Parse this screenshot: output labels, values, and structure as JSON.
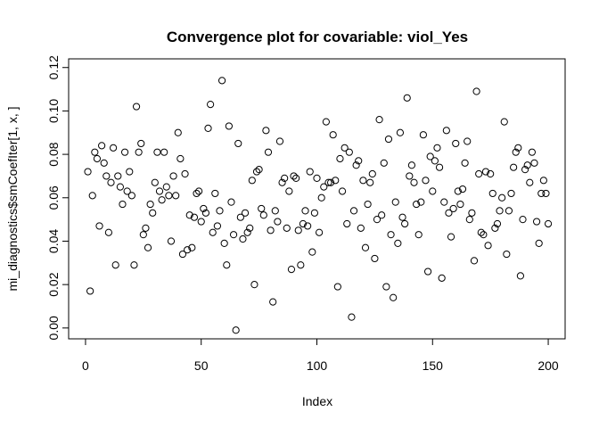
{
  "chart_data": {
    "type": "scatter",
    "title": "Convergence plot for covariable:   viol_Yes",
    "xlabel": "Index",
    "ylabel": "mi_diagnostics$smCoefIter[1, x, ]",
    "x": [
      1,
      2,
      3,
      4,
      5,
      6,
      7,
      8,
      9,
      10,
      11,
      12,
      13,
      14,
      15,
      16,
      17,
      18,
      19,
      20,
      21,
      22,
      23,
      24,
      25,
      26,
      27,
      28,
      29,
      30,
      31,
      32,
      33,
      34,
      35,
      36,
      37,
      38,
      39,
      40,
      41,
      42,
      43,
      44,
      45,
      46,
      47,
      48,
      49,
      50,
      51,
      52,
      53,
      54,
      55,
      56,
      57,
      58,
      59,
      60,
      61,
      62,
      63,
      64,
      65,
      66,
      67,
      68,
      69,
      70,
      71,
      72,
      73,
      74,
      75,
      76,
      77,
      78,
      79,
      80,
      81,
      82,
      83,
      84,
      85,
      86,
      87,
      88,
      89,
      90,
      91,
      92,
      93,
      94,
      95,
      96,
      97,
      98,
      99,
      100,
      101,
      102,
      103,
      104,
      105,
      106,
      107,
      108,
      109,
      110,
      111,
      112,
      113,
      114,
      115,
      116,
      117,
      118,
      119,
      120,
      121,
      122,
      123,
      124,
      125,
      126,
      127,
      128,
      129,
      130,
      131,
      132,
      133,
      134,
      135,
      136,
      137,
      138,
      139,
      140,
      141,
      142,
      143,
      144,
      145,
      146,
      147,
      148,
      149,
      150,
      151,
      152,
      153,
      154,
      155,
      156,
      157,
      158,
      159,
      160,
      161,
      162,
      163,
      164,
      165,
      166,
      167,
      168,
      169,
      170,
      171,
      172,
      173,
      174,
      175,
      176,
      177,
      178,
      179,
      180,
      181,
      182,
      183,
      184,
      185,
      186,
      187,
      188,
      189,
      190,
      191,
      192,
      193,
      194,
      195,
      196,
      197,
      198,
      199,
      200
    ],
    "values": [
      0.072,
      0.017,
      0.061,
      0.081,
      0.078,
      0.047,
      0.084,
      0.076,
      0.07,
      0.044,
      0.067,
      0.083,
      0.029,
      0.07,
      0.065,
      0.057,
      0.081,
      0.063,
      0.072,
      0.061,
      0.029,
      0.102,
      0.081,
      0.085,
      0.043,
      0.046,
      0.037,
      0.057,
      0.053,
      0.067,
      0.081,
      0.063,
      0.059,
      0.081,
      0.065,
      0.061,
      0.04,
      0.07,
      0.061,
      0.09,
      0.078,
      0.034,
      0.071,
      0.036,
      0.052,
      0.037,
      0.051,
      0.062,
      0.063,
      0.049,
      0.055,
      0.053,
      0.092,
      0.103,
      0.044,
      0.062,
      0.047,
      0.054,
      0.114,
      0.039,
      0.029,
      0.093,
      0.058,
      0.043,
      -0.001,
      0.085,
      0.051,
      0.041,
      0.053,
      0.044,
      0.046,
      0.068,
      0.02,
      0.072,
      0.073,
      0.055,
      0.052,
      0.091,
      0.081,
      0.045,
      0.012,
      0.054,
      0.049,
      0.086,
      0.067,
      0.069,
      0.046,
      0.063,
      0.027,
      0.07,
      0.069,
      0.045,
      0.029,
      0.048,
      0.054,
      0.047,
      0.072,
      0.035,
      0.053,
      0.069,
      0.044,
      0.06,
      0.065,
      0.095,
      0.067,
      0.067,
      0.089,
      0.068,
      0.019,
      0.078,
      0.063,
      0.083,
      0.048,
      0.081,
      0.005,
      0.054,
      0.075,
      0.077,
      0.046,
      0.068,
      0.037,
      0.057,
      0.067,
      0.071,
      0.032,
      0.05,
      0.096,
      0.052,
      0.076,
      0.019,
      0.087,
      0.043,
      0.014,
      0.058,
      0.039,
      0.09,
      0.051,
      0.048,
      0.106,
      0.07,
      0.075,
      0.067,
      0.057,
      0.043,
      0.058,
      0.089,
      0.068,
      0.026,
      0.079,
      0.063,
      0.077,
      0.083,
      0.074,
      0.023,
      0.058,
      0.091,
      0.053,
      0.042,
      0.055,
      0.085,
      0.063,
      0.057,
      0.064,
      0.076,
      0.086,
      0.05,
      0.053,
      0.031,
      0.109,
      0.071,
      0.044,
      0.043,
      0.072,
      0.038,
      0.071,
      0.062,
      0.046,
      0.048,
      0.054,
      0.06,
      0.095,
      0.034,
      0.054,
      0.062,
      0.074,
      0.081,
      0.083,
      0.024,
      0.05,
      0.073,
      0.075,
      0.067,
      0.081,
      0.076,
      0.049,
      0.039,
      0.062,
      0.068,
      0.062,
      0.048
    ],
    "color": "#000000",
    "xlim": [
      -7.3,
      207.3
    ],
    "ylim": [
      -0.005,
      0.124
    ],
    "xticks": [
      0,
      50,
      100,
      150,
      200
    ],
    "yticks": [
      {
        "value": 0,
        "label": "0.00"
      },
      0.02,
      0.04,
      0.06,
      0.08,
      {
        "value": 0.1,
        "label": "0.10"
      },
      0.12
    ]
  }
}
